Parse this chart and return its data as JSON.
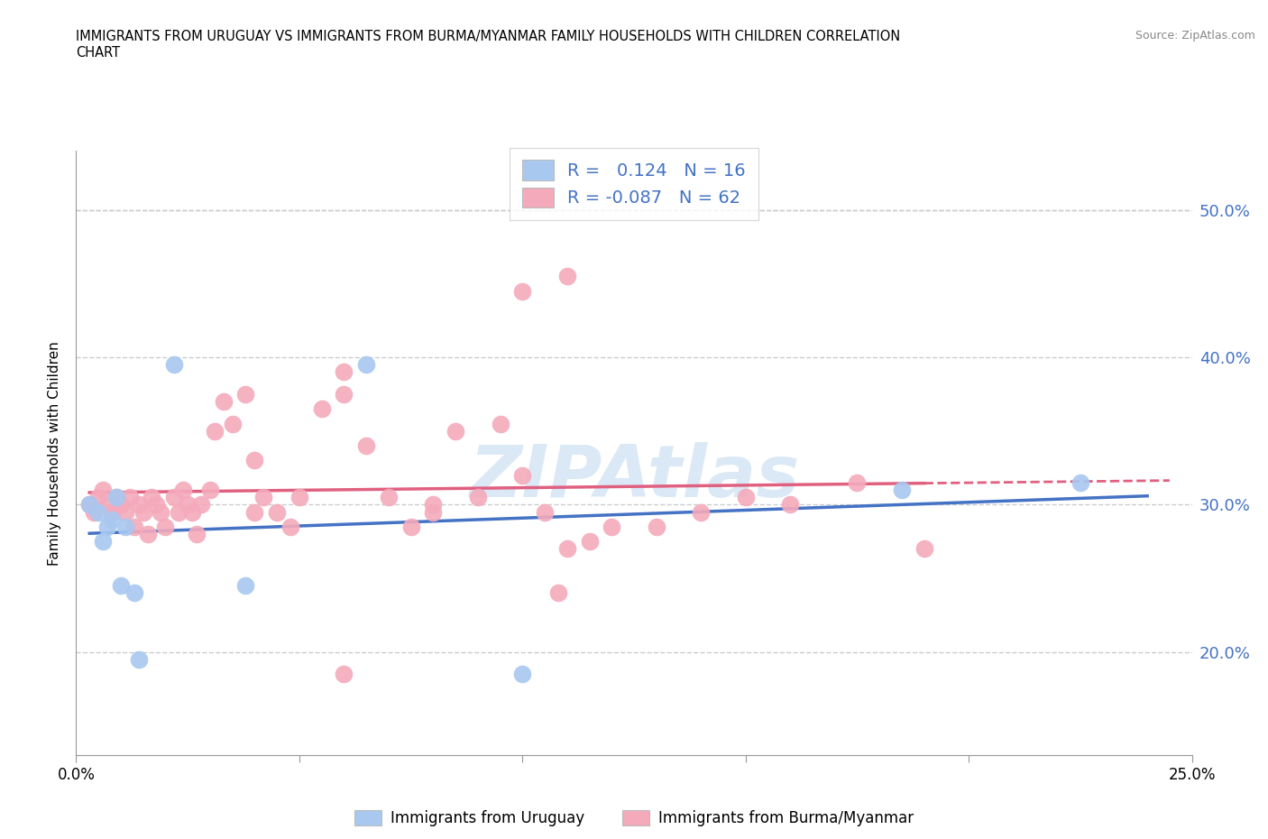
{
  "title_line1": "IMMIGRANTS FROM URUGUAY VS IMMIGRANTS FROM BURMA/MYANMAR FAMILY HOUSEHOLDS WITH CHILDREN CORRELATION",
  "title_line2": "CHART",
  "source": "Source: ZipAtlas.com",
  "watermark": "ZIPAtlas",
  "ylabel": "Family Households with Children",
  "xlim": [
    0.0,
    0.25
  ],
  "ylim": [
    0.13,
    0.54
  ],
  "xticks": [
    0.0,
    0.05,
    0.1,
    0.15,
    0.2,
    0.25
  ],
  "yticks": [
    0.2,
    0.3,
    0.4,
    0.5
  ],
  "ytick_labels": [
    "20.0%",
    "30.0%",
    "40.0%",
    "50.0%"
  ],
  "xtick_labels": [
    "0.0%",
    "",
    "",
    "",
    "",
    "25.0%"
  ],
  "series1_color": "#a8c8f0",
  "series2_color": "#f4aabb",
  "trend1_color": "#4472c4",
  "trend2_color": "#e06080",
  "legend_R1": "0.124",
  "legend_N1": "16",
  "legend_R2": "-0.087",
  "legend_N2": "62",
  "legend_label1": "Immigrants from Uruguay",
  "legend_label2": "Immigrants from Burma/Myanmar",
  "uruguay_x": [
    0.003,
    0.005,
    0.006,
    0.007,
    0.008,
    0.009,
    0.01,
    0.011,
    0.013,
    0.014,
    0.022,
    0.038,
    0.065,
    0.1,
    0.185,
    0.225
  ],
  "uruguay_y": [
    0.3,
    0.295,
    0.275,
    0.285,
    0.29,
    0.305,
    0.245,
    0.285,
    0.24,
    0.195,
    0.395,
    0.245,
    0.395,
    0.185,
    0.31,
    0.315
  ],
  "burma_x": [
    0.003,
    0.004,
    0.005,
    0.006,
    0.007,
    0.008,
    0.009,
    0.01,
    0.011,
    0.012,
    0.013,
    0.014,
    0.015,
    0.016,
    0.017,
    0.018,
    0.019,
    0.02,
    0.022,
    0.023,
    0.024,
    0.025,
    0.026,
    0.027,
    0.028,
    0.03,
    0.031,
    0.033,
    0.035,
    0.038,
    0.04,
    0.042,
    0.045,
    0.048,
    0.05,
    0.055,
    0.06,
    0.065,
    0.07,
    0.075,
    0.08,
    0.085,
    0.09,
    0.095,
    0.1,
    0.105,
    0.11,
    0.12,
    0.13,
    0.14,
    0.15,
    0.16,
    0.175,
    0.19,
    0.11,
    0.06,
    0.08,
    0.1,
    0.04,
    0.06,
    0.108,
    0.115
  ],
  "burma_y": [
    0.3,
    0.295,
    0.305,
    0.31,
    0.3,
    0.295,
    0.305,
    0.3,
    0.295,
    0.305,
    0.285,
    0.3,
    0.295,
    0.28,
    0.305,
    0.3,
    0.295,
    0.285,
    0.305,
    0.295,
    0.31,
    0.3,
    0.295,
    0.28,
    0.3,
    0.31,
    0.35,
    0.37,
    0.355,
    0.375,
    0.295,
    0.305,
    0.295,
    0.285,
    0.305,
    0.365,
    0.375,
    0.34,
    0.305,
    0.285,
    0.295,
    0.35,
    0.305,
    0.355,
    0.32,
    0.295,
    0.27,
    0.285,
    0.285,
    0.295,
    0.305,
    0.3,
    0.315,
    0.27,
    0.455,
    0.39,
    0.3,
    0.445,
    0.33,
    0.185,
    0.24,
    0.275
  ]
}
